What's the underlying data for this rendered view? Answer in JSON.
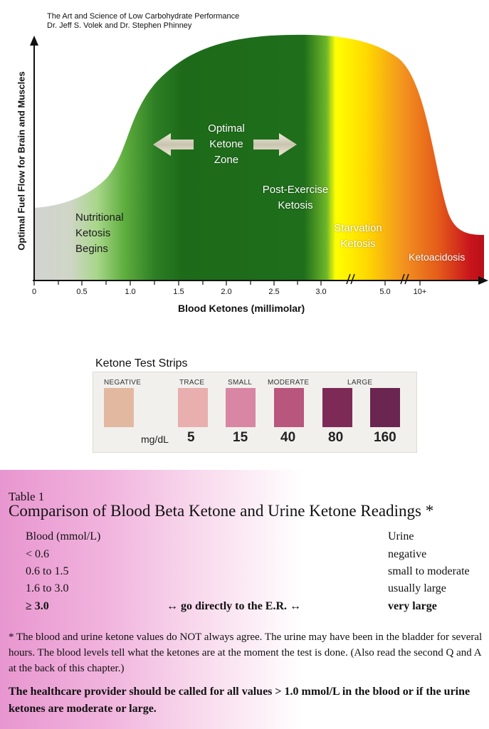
{
  "source": {
    "line1": "The Art and Science of Low Carbohydrate Performance",
    "line2": "Dr. Jeff S. Volek and Dr. Stephen Phinney"
  },
  "chart": {
    "ylabel": "Optimal Fuel Flow for Brain and Muscles",
    "xlabel": "Blood Ketones (millimolar)",
    "ticks": [
      "0",
      "0.5",
      "1.0",
      "1.5",
      "2.0",
      "2.5",
      "3.0",
      "5.0",
      "10+"
    ],
    "zones": {
      "nutritional": [
        "Nutritional",
        "Ketosis",
        "Begins"
      ],
      "optimal": [
        "Optimal",
        "Ketone",
        "Zone"
      ],
      "post_exercise": [
        "Post-Exercise",
        "Ketosis"
      ],
      "starvation": [
        "Starvation",
        "Ketosis"
      ],
      "ketoacidosis": "Ketoacidosis"
    },
    "colors": {
      "grey": "#d0d0d0",
      "green_light": "#a8d68a",
      "green_dark": "#1f6e1b",
      "yellow": "#ffff00",
      "orange": "#f39a1f",
      "red": "#c8141c"
    }
  },
  "strips": {
    "title": "Ketone Test Strips",
    "unit": "mg/dL",
    "headers": {
      "negative": "NEGATIVE",
      "trace": "TRACE",
      "small": "SMALL",
      "moderate": "MODERATE",
      "large": "LARGE"
    },
    "swatches": [
      {
        "color": "#e2b9a0",
        "value": ""
      },
      {
        "color": "#e9aeae",
        "value": "5"
      },
      {
        "color": "#d886a3",
        "value": "15"
      },
      {
        "color": "#b9567d",
        "value": "40"
      },
      {
        "color": "#7e2a56",
        "value": "80"
      },
      {
        "color": "#6a2550",
        "value": "160"
      }
    ]
  },
  "table": {
    "label": "Table 1",
    "title": "Comparison of Blood Beta Ketone and Urine Ketone Readings *",
    "col_blood": "Blood (mmol/L)",
    "col_urine": "Urine",
    "rows": [
      {
        "blood": "< 0.6",
        "urine": "negative",
        "mid": ""
      },
      {
        "blood": "0.6 to 1.5",
        "urine": "small to moderate",
        "mid": ""
      },
      {
        "blood": "1.6 to 3.0",
        "urine": "usually large",
        "mid": ""
      },
      {
        "blood": "≥ 3.0",
        "urine": "very large",
        "mid": "↔ go directly to the E.R. ↔"
      }
    ],
    "note": "* The blood and urine ketone values do NOT always agree.  The urine may have been in the bladder for several hours.  The blood levels tell what the ketones are at the moment the test is done.  (Also read the second Q and A at the back of this chapter.)",
    "note2": "The healthcare provider should be called for all values > 1.0 mmol/L in the blood or if the urine ketones are moderate or large."
  }
}
